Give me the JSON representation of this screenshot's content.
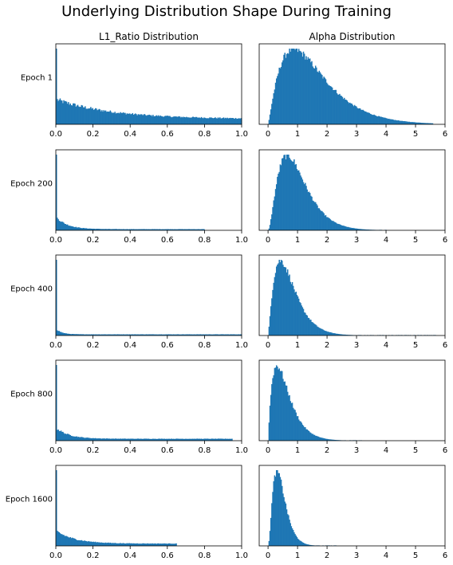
{
  "figure": {
    "title": "Underlying Distribution Shape During Training",
    "bar_color": "#1f77b4"
  },
  "chart_data": [
    {
      "type": "bar",
      "panel": "epoch1-l1",
      "title": "L1_Ratio Distribution",
      "row_label": "Epoch 1",
      "xlim": [
        0,
        1
      ],
      "xticks": [
        "0.0",
        "0.2",
        "0.4",
        "0.6",
        "0.8",
        "1.0"
      ],
      "shape": {
        "kind": "spike_tail",
        "spike": 1.0,
        "near_zero": 0.33,
        "decay": 0.3,
        "tail": 0.07,
        "xmax": 1.0
      }
    },
    {
      "type": "bar",
      "panel": "epoch1-alpha",
      "title": "Alpha Distribution",
      "row_label": "Epoch 1",
      "xlim": [
        -0.3,
        6
      ],
      "xticks": [
        "0",
        "1",
        "2",
        "3",
        "4",
        "5",
        "6"
      ],
      "shape": {
        "kind": "gamma",
        "k": 2.2,
        "theta": 0.72,
        "xmax": 5.6
      }
    },
    {
      "type": "bar",
      "panel": "epoch200-l1",
      "row_label": "Epoch 200",
      "xlim": [
        0,
        1
      ],
      "xticks": [
        "0.0",
        "0.2",
        "0.4",
        "0.6",
        "0.8",
        "1.0"
      ],
      "shape": {
        "kind": "spike_tail",
        "spike": 1.0,
        "near_zero": 0.18,
        "decay": 0.06,
        "tail": 0.015,
        "xmax": 0.8
      }
    },
    {
      "type": "bar",
      "panel": "epoch200-alpha",
      "row_label": "Epoch 200",
      "xlim": [
        -0.3,
        6
      ],
      "xticks": [
        "0",
        "1",
        "2",
        "3",
        "4",
        "5",
        "6"
      ],
      "shape": {
        "kind": "gamma",
        "k": 2.8,
        "theta": 0.36,
        "xmax": 4.0
      }
    },
    {
      "type": "bar",
      "panel": "epoch400-l1",
      "row_label": "Epoch 400",
      "xlim": [
        0,
        1
      ],
      "xticks": [
        "0.0",
        "0.2",
        "0.4",
        "0.6",
        "0.8",
        "1.0"
      ],
      "shape": {
        "kind": "spike_tail",
        "spike": 1.0,
        "near_zero": 0.09,
        "decay": 0.03,
        "tail": 0.015,
        "xmax": 1.0
      }
    },
    {
      "type": "bar",
      "panel": "epoch400-alpha",
      "row_label": "Epoch 400",
      "xlim": [
        -0.3,
        6
      ],
      "xticks": [
        "0",
        "1",
        "2",
        "3",
        "4",
        "5",
        "6"
      ],
      "shape": {
        "kind": "gamma",
        "k": 2.3,
        "theta": 0.32,
        "xmax": 5.7
      }
    },
    {
      "type": "bar",
      "panel": "epoch800-l1",
      "row_label": "Epoch 800",
      "xlim": [
        0,
        1
      ],
      "xticks": [
        "0.0",
        "0.2",
        "0.4",
        "0.6",
        "0.8",
        "1.0"
      ],
      "shape": {
        "kind": "spike_tail",
        "spike": 1.0,
        "near_zero": 0.17,
        "decay": 0.07,
        "tail": 0.025,
        "xmax": 0.95
      }
    },
    {
      "type": "bar",
      "panel": "epoch800-alpha",
      "row_label": "Epoch 800",
      "xlim": [
        -0.3,
        6
      ],
      "xticks": [
        "0",
        "1",
        "2",
        "3",
        "4",
        "5",
        "6"
      ],
      "shape": {
        "kind": "gamma",
        "k": 2.0,
        "theta": 0.3,
        "xmax": 3.3
      }
    },
    {
      "type": "bar",
      "panel": "epoch1600-l1",
      "row_label": "Epoch 1600",
      "xlim": [
        0,
        1
      ],
      "xticks": [
        "0.0",
        "0.2",
        "0.4",
        "0.6",
        "0.8",
        "1.0"
      ],
      "shape": {
        "kind": "spike_tail",
        "spike": 1.0,
        "near_zero": 0.2,
        "decay": 0.1,
        "tail": 0.03,
        "xmax": 0.65
      }
    },
    {
      "type": "bar",
      "panel": "epoch1600-alpha",
      "row_label": "Epoch 1600",
      "xlim": [
        -0.3,
        6
      ],
      "xticks": [
        "0",
        "1",
        "2",
        "3",
        "4",
        "5",
        "6"
      ],
      "shape": {
        "kind": "gamma",
        "k": 3.0,
        "theta": 0.15,
        "xmax": 2.3
      }
    }
  ]
}
